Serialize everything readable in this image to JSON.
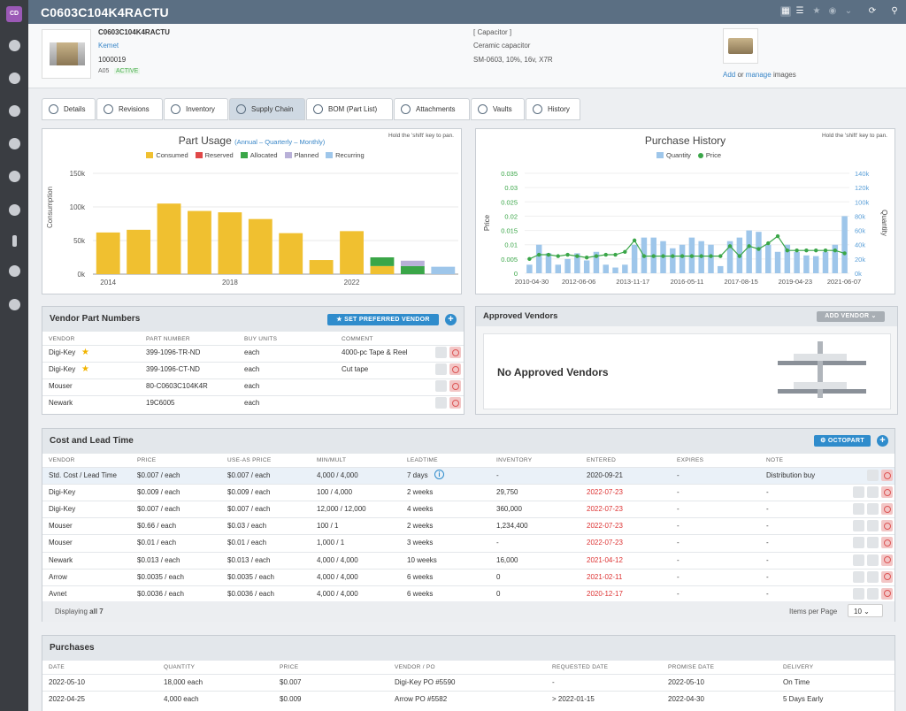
{
  "app": {
    "avatar": "CD"
  },
  "part": {
    "number": "C0603C104K4RACTU",
    "manufacturer": "Kemet",
    "internal_id": "1000019",
    "rev": "A05",
    "status": "ACTIVE",
    "category": "[ Capacitor ]",
    "type": "Ceramic capacitor",
    "spec": "SM-0603, 10%, 16v, X7R",
    "add_text": "Add",
    "or_text": " or ",
    "manage_text": "manage",
    "images_text": " images"
  },
  "tabs": [
    "Details",
    "Revisions",
    "Inventory",
    "Supply Chain",
    "BOM (Part List)",
    "Attachments",
    "Vaults",
    "History"
  ],
  "pan_note": "Hold the 'shift' key to pan.",
  "usage_chart": {
    "title": "Part Usage",
    "modes": "(Annual – Quarterly – Monthly)",
    "ylabel": "Consumption",
    "legend": [
      {
        "name": "Consumed",
        "color": "#f0c030"
      },
      {
        "name": "Reserved",
        "color": "#e04848"
      },
      {
        "name": "Allocated",
        "color": "#3aa648"
      },
      {
        "name": "Planned",
        "color": "#b8b0d8"
      },
      {
        "name": "Recurring",
        "color": "#9ec6ea"
      }
    ],
    "yticks": [
      "150k",
      "100k",
      "50k",
      "0k"
    ],
    "xticks": [
      "2014",
      "2018",
      "2022"
    ]
  },
  "chart_data": [
    {
      "type": "bar",
      "title": "Part Usage",
      "ylabel": "Consumption",
      "ylim": [
        0,
        150000
      ],
      "categories": [
        "2014",
        "2015",
        "2016",
        "2017",
        "2018",
        "2019",
        "2020",
        "2021",
        "2022",
        "2023",
        "2024",
        "2025"
      ],
      "series": [
        {
          "name": "Consumed",
          "values": [
            62000,
            66000,
            105000,
            94000,
            92000,
            82000,
            61000,
            21000,
            64000,
            12000,
            0,
            0
          ]
        },
        {
          "name": "Allocated",
          "values": [
            0,
            0,
            0,
            0,
            0,
            0,
            0,
            0,
            0,
            13000,
            12000,
            0
          ]
        },
        {
          "name": "Planned",
          "values": [
            0,
            0,
            0,
            0,
            0,
            0,
            0,
            0,
            0,
            0,
            8000,
            0
          ]
        },
        {
          "name": "Recurring",
          "values": [
            0,
            0,
            0,
            0,
            0,
            0,
            0,
            0,
            0,
            0,
            0,
            11000
          ]
        }
      ]
    },
    {
      "type": "bar+line",
      "title": "Purchase History",
      "x_ticks": [
        "2010-04-30",
        "2012-06-06",
        "2013-11-17",
        "2016-05-11",
        "2017-08-15",
        "2019-04-23",
        "2021-06-07"
      ],
      "ylabel_left": "Price",
      "ylabel_right": "Quantity",
      "y_left_ticks": [
        "0.035",
        "0.03",
        "0.025",
        "0.02",
        "0.015",
        "0.01",
        "0.005",
        "0"
      ],
      "y_right_ticks": [
        "140k",
        "120k",
        "100k",
        "80k",
        "60k",
        "40k",
        "20k",
        "0k"
      ],
      "ylim_left": [
        0,
        0.035
      ],
      "ylim_right": [
        0,
        140000
      ],
      "series": [
        {
          "name": "Quantity",
          "values": [
            12000,
            40000,
            28000,
            12000,
            20000,
            28000,
            18000,
            30000,
            12000,
            8000,
            12000,
            40000,
            50000,
            50000,
            45000,
            35000,
            40000,
            50000,
            45000,
            40000,
            10000,
            45000,
            50000,
            60000,
            58000,
            40000,
            30000,
            40000,
            30000,
            25000,
            24000,
            30000,
            40000,
            80000
          ]
        },
        {
          "name": "Price",
          "values": [
            0.005,
            0.0065,
            0.0065,
            0.006,
            0.0065,
            0.006,
            0.0055,
            0.006,
            0.0065,
            0.0065,
            0.0075,
            0.0115,
            0.006,
            0.006,
            0.006,
            0.006,
            0.006,
            0.006,
            0.006,
            0.006,
            0.006,
            0.0095,
            0.006,
            0.0095,
            0.0085,
            0.0105,
            0.013,
            0.008,
            0.008,
            0.008,
            0.008,
            0.008,
            0.008,
            0.007
          ]
        }
      ]
    }
  ],
  "purchase_chart": {
    "title": "Purchase History",
    "legend": [
      {
        "name": "Quantity",
        "color": "#9ec6ea"
      },
      {
        "name": "Price",
        "color": "#3aa648"
      }
    ]
  },
  "vpn": {
    "title": "Vendor Part Numbers",
    "set_pref": "SET PREFERRED VENDOR",
    "cols": [
      "VENDOR",
      "PART NUMBER",
      "BUY UNITS",
      "COMMENT"
    ],
    "rows": [
      {
        "vendor": "Digi-Key",
        "star": true,
        "pn": "399-1096-TR-ND",
        "link": true,
        "units": "each",
        "comment": "4000-pc Tape & Reel"
      },
      {
        "vendor": "Digi-Key",
        "star": true,
        "pn": "399-1096-CT-ND",
        "link": true,
        "units": "each",
        "comment": "Cut tape"
      },
      {
        "vendor": "Mouser",
        "star": false,
        "pn": "80-C0603C104K4R",
        "link": false,
        "units": "each",
        "comment": ""
      },
      {
        "vendor": "Newark",
        "star": false,
        "pn": "19C6005",
        "link": false,
        "units": "each",
        "comment": ""
      }
    ]
  },
  "approved": {
    "title": "Approved Vendors",
    "add": "ADD VENDOR",
    "empty": "No Approved Vendors"
  },
  "clt": {
    "title": "Cost and Lead Time",
    "octopart": "OCTOPART",
    "cols": [
      "VENDOR",
      "PRICE",
      "USE-AS PRICE",
      "MIN/MULT",
      "LEADTIME",
      "INVENTORY",
      "ENTERED",
      "EXPIRES",
      "NOTE"
    ],
    "rows": [
      {
        "vendor": "Std. Cost / Lead Time",
        "price": "$0.007 / each",
        "use": "$0.007 / each",
        "min": "4,000 / 4,000",
        "lead": "7 days",
        "inv": "-",
        "entered": "2020-09-21",
        "red": false,
        "exp": "-",
        "note": "Distribution buy"
      },
      {
        "vendor": "Digi-Key",
        "price": "$0.009 / each",
        "use": "$0.009 / each",
        "min": "100 / 4,000",
        "lead": "2 weeks",
        "inv": "29,750",
        "entered": "2022-07-23",
        "red": true,
        "exp": "-",
        "note": "-"
      },
      {
        "vendor": "Digi-Key",
        "price": "$0.007 / each",
        "use": "$0.007 / each",
        "min": "12,000 / 12,000",
        "lead": "4 weeks",
        "inv": "360,000",
        "entered": "2022-07-23",
        "red": true,
        "exp": "-",
        "note": "-"
      },
      {
        "vendor": "Mouser",
        "price": "$0.66 / each",
        "use": "$0.03 / each",
        "min": "100 / 1",
        "lead": "2 weeks",
        "inv": "1,234,400",
        "entered": "2022-07-23",
        "red": true,
        "exp": "-",
        "note": "-"
      },
      {
        "vendor": "Mouser",
        "price": "$0.01 / each",
        "use": "$0.01 / each",
        "min": "1,000 / 1",
        "lead": "3 weeks",
        "inv": "-",
        "entered": "2022-07-23",
        "red": true,
        "exp": "-",
        "note": "-"
      },
      {
        "vendor": "Newark",
        "price": "$0.013 / each",
        "use": "$0.013 / each",
        "min": "4,000 / 4,000",
        "lead": "10 weeks",
        "inv": "16,000",
        "entered": "2021-04-12",
        "red": true,
        "exp": "-",
        "note": "-"
      },
      {
        "vendor": "Arrow",
        "price": "$0.0035 / each",
        "use": "$0.0035 / each",
        "min": "4,000 / 4,000",
        "lead": "6 weeks",
        "inv": "0",
        "entered": "2021-02-11",
        "red": true,
        "exp": "-",
        "note": "-"
      },
      {
        "vendor": "Avnet",
        "price": "$0.0036 / each",
        "use": "$0.0036 / each",
        "min": "4,000 / 4,000",
        "lead": "6 weeks",
        "inv": "0",
        "entered": "2020-12-17",
        "red": true,
        "exp": "-",
        "note": "-"
      }
    ],
    "displaying": "Displaying",
    "all": "all 7",
    "ipp_label": "Items per Page",
    "ipp": "10"
  },
  "purchases": {
    "title": "Purchases",
    "cols": [
      "DATE",
      "QUANTITY",
      "PRICE",
      "VENDOR / PO",
      "REQUESTED DATE",
      "PROMISE DATE",
      "DELIVERY"
    ],
    "rows": [
      {
        "date": "2022-05-10",
        "qty": "18,000 each",
        "price": "$0.007",
        "po": "Digi-Key PO #5590",
        "req": "-",
        "promise": "2022-05-10",
        "delivery": "On Time"
      },
      {
        "date": "2022-04-25",
        "qty": "4,000 each",
        "price": "$0.009",
        "po": "Arrow PO #5582",
        "req": "> 2022-01-15",
        "promise": "2022-04-30",
        "delivery": "5 Days Early"
      }
    ]
  }
}
